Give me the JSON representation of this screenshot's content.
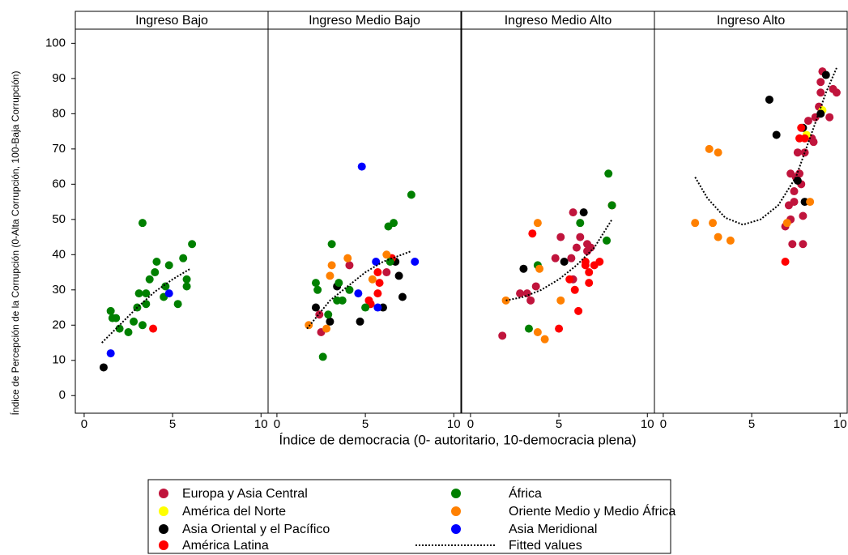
{
  "ylabel": "Índice de Percepción de la Corrupción (0-Alta Corrupción, 100-Baja Corrupción)",
  "xlabel": "Índice de democracia (0- autoritario, 10-democracia plena)",
  "chart_data": [
    {
      "type": "scatter",
      "title": "Ingreso Bajo",
      "xlim": [
        -0.5,
        10.4
      ],
      "xticks": [
        0,
        5,
        10
      ],
      "ylim": [
        -5,
        104
      ],
      "yticks": [
        0,
        10,
        20,
        30,
        40,
        50,
        60,
        70,
        80,
        90,
        100
      ],
      "series": [
        {
          "name": "Europa y Asia Central",
          "color": "#c0143c",
          "x": [],
          "values": []
        },
        {
          "name": "América del Norte",
          "color": "#ffff00",
          "x": [],
          "values": []
        },
        {
          "name": "Asia Oriental y el Pacífico",
          "color": "#000000",
          "x": [
            1.1
          ],
          "values": [
            8
          ]
        },
        {
          "name": "América Latina",
          "color": "#ff0000",
          "x": [
            3.9
          ],
          "values": [
            19
          ]
        },
        {
          "name": "África",
          "color": "#008000",
          "x": [
            3.3,
            6.1,
            4.1,
            4.8,
            5.6,
            4.0,
            5.8,
            5.8,
            3.7,
            4.6,
            4.5,
            5.3,
            3.5,
            3.1,
            3.5,
            3.0,
            2.8,
            3.3,
            2.5,
            2.0,
            1.5,
            1.6,
            1.8
          ],
          "values": [
            49,
            43,
            38,
            37,
            39,
            35,
            33,
            31,
            33,
            31,
            28,
            26,
            29,
            29,
            26,
            25,
            21,
            20,
            18,
            19,
            24,
            22,
            22
          ]
        },
        {
          "name": "Oriente Medio y Medio África",
          "color": "#ff8000",
          "x": [],
          "values": []
        },
        {
          "name": "Asia Meridional",
          "color": "#0000ff",
          "x": [
            1.5,
            4.8
          ],
          "values": [
            12,
            29
          ]
        },
        {
          "name": "Fitted values",
          "type": "line",
          "color": "#000000",
          "x": [
            1,
            2,
            3,
            4,
            5,
            6
          ],
          "values": [
            15,
            20,
            25,
            29.5,
            33,
            36
          ]
        }
      ]
    },
    {
      "type": "scatter",
      "title": "Ingreso Medio Bajo",
      "xlim": [
        -0.5,
        10.4
      ],
      "xticks": [
        0,
        5,
        10
      ],
      "ylim": [
        -5,
        104
      ],
      "series": [
        {
          "name": "Europa y Asia Central",
          "color": "#c0143c",
          "x": [
            2.4,
            2.5,
            4.1,
            6.2
          ],
          "values": [
            23,
            18,
            37,
            35
          ]
        },
        {
          "name": "América del Norte",
          "color": "#ffff00",
          "x": [],
          "values": []
        },
        {
          "name": "Asia Oriental y el Pacífico",
          "color": "#000000",
          "x": [
            2.2,
            3.0,
            3.4,
            4.7,
            6.0,
            6.7,
            6.9,
            7.1
          ],
          "values": [
            25,
            21,
            31,
            21,
            25,
            38,
            34,
            28
          ]
        },
        {
          "name": "América Latina",
          "color": "#ff0000",
          "x": [
            5.7,
            5.8,
            5.7,
            5.2,
            5.3,
            6.5
          ],
          "values": [
            35,
            32,
            29,
            27,
            26,
            39
          ]
        },
        {
          "name": "África",
          "color": "#008000",
          "x": [
            7.6,
            6.3,
            6.6,
            3.1,
            2.2,
            2.3,
            2.9,
            2.6,
            3.5,
            3.7,
            3.4,
            4.1,
            5.0,
            6.4
          ],
          "values": [
            57,
            48,
            49,
            43,
            32,
            30,
            23,
            11,
            32,
            27,
            27,
            30,
            25,
            38
          ]
        },
        {
          "name": "Oriente Medio y Medio África",
          "color": "#ff8000",
          "x": [
            1.8,
            2.8,
            3.1,
            3.0,
            4.0,
            6.2,
            5.4
          ],
          "values": [
            20,
            19,
            37,
            34,
            39,
            40,
            33
          ]
        },
        {
          "name": "Asia Meridional",
          "color": "#0000ff",
          "x": [
            4.8,
            5.6,
            7.8,
            4.6,
            5.7
          ],
          "values": [
            65,
            38,
            38,
            29,
            25
          ]
        },
        {
          "name": "Fitted values",
          "type": "line",
          "color": "#000000",
          "x": [
            1.7,
            3,
            4,
            5,
            6,
            7.6
          ],
          "values": [
            19,
            27,
            31,
            35,
            38,
            41
          ]
        }
      ]
    },
    {
      "type": "scatter",
      "title": "Ingreso Medio Alto",
      "xlim": [
        -0.5,
        10.4
      ],
      "xticks": [
        0,
        5,
        10
      ],
      "ylim": [
        -5,
        104
      ],
      "series": [
        {
          "name": "Europa y Asia Central",
          "color": "#c0143c",
          "x": [
            1.8,
            2.8,
            3.2,
            3.4,
            3.7,
            4.8,
            5.1,
            5.7,
            5.8,
            5.8,
            6.0,
            6.2,
            6.6,
            6.6,
            6.8
          ],
          "values": [
            17,
            29,
            29,
            27,
            31,
            39,
            45,
            39,
            52,
            33,
            42,
            45,
            43,
            41,
            42
          ]
        },
        {
          "name": "América del Norte",
          "color": "#ffff00",
          "x": [],
          "values": []
        },
        {
          "name": "Asia Oriental y el Pacífico",
          "color": "#000000",
          "x": [
            3.0,
            5.3,
            6.4
          ],
          "values": [
            36,
            38,
            52
          ]
        },
        {
          "name": "América Latina",
          "color": "#ff0000",
          "x": [
            3.5,
            5.0,
            5.6,
            5.9,
            6.1,
            6.5,
            6.5,
            6.7,
            6.7,
            7.0,
            7.3,
            8.0
          ],
          "values": [
            46,
            19,
            33,
            30,
            24,
            38,
            37,
            35,
            32,
            37,
            38,
            54
          ]
        },
        {
          "name": "África",
          "color": "#008000",
          "x": [
            3.3,
            3.8,
            6.2,
            7.8,
            7.7,
            8.0
          ],
          "values": [
            19,
            37,
            49,
            63,
            44,
            54
          ]
        },
        {
          "name": "Oriente Medio y Medio África",
          "color": "#ff8000",
          "x": [
            2.0,
            3.8,
            3.9,
            3.8,
            4.2,
            5.1
          ],
          "values": [
            27,
            49,
            36,
            18,
            16,
            27
          ]
        },
        {
          "name": "Asia Meridional",
          "color": "#0000ff",
          "x": [],
          "values": []
        },
        {
          "name": "Fitted values",
          "type": "line",
          "color": "#000000",
          "x": [
            2,
            3,
            4,
            5,
            6,
            7,
            8
          ],
          "values": [
            27,
            28,
            30,
            33,
            37,
            42,
            50
          ]
        }
      ]
    },
    {
      "type": "scatter",
      "title": "Ingreso Alto",
      "xlim": [
        -0.5,
        10.4
      ],
      "xticks": [
        0,
        5,
        10
      ],
      "ylim": [
        -5,
        104
      ],
      "series": [
        {
          "name": "Europa y Asia Central",
          "color": "#c0143c",
          "x": [
            9.0,
            8.9,
            8.9,
            9.6,
            9.8,
            9.4,
            8.8,
            8.6,
            8.2,
            8.4,
            8.5,
            7.6,
            8.0,
            7.2,
            7.5,
            7.8,
            7.4,
            7.4,
            7.1,
            7.9,
            7.2,
            6.9,
            7.3,
            7.9,
            7.7
          ],
          "values": [
            92,
            89,
            86,
            87,
            86,
            79,
            82,
            79,
            78,
            73,
            72,
            69,
            69,
            63,
            62,
            60,
            58,
            55,
            54,
            51,
            50,
            48,
            43,
            43,
            63
          ]
        },
        {
          "name": "América del Norte",
          "color": "#ffff00",
          "x": [
            9.0,
            8.1
          ],
          "values": [
            81,
            74
          ]
        },
        {
          "name": "Asia Oriental y el Pacífico",
          "color": "#000000",
          "x": [
            6.0,
            6.4,
            7.9,
            8.0,
            7.6,
            8.9,
            9.2
          ],
          "values": [
            84,
            74,
            76,
            55,
            61,
            80,
            91
          ]
        },
        {
          "name": "América Latina",
          "color": "#ff0000",
          "x": [
            6.9,
            7.7,
            8.0,
            7.8
          ],
          "values": [
            38,
            73,
            73,
            76
          ]
        },
        {
          "name": "África",
          "color": "#008000",
          "x": [],
          "values": []
        },
        {
          "name": "Oriente Medio y Medio África",
          "color": "#ff8000",
          "x": [
            1.8,
            2.6,
            3.1,
            2.8,
            3.1,
            3.8,
            7.0,
            8.3
          ],
          "values": [
            49,
            70,
            69,
            49,
            45,
            44,
            49,
            55
          ]
        },
        {
          "name": "Asia Meridional",
          "color": "#0000ff",
          "x": [],
          "values": []
        },
        {
          "name": "Fitted values",
          "type": "line",
          "color": "#000000",
          "x": [
            1.8,
            2.5,
            3.5,
            4.5,
            5.5,
            6.5,
            7.5,
            8.5,
            9.2,
            9.8
          ],
          "values": [
            62,
            56,
            50.5,
            48.5,
            50,
            54,
            62,
            76,
            86,
            93
          ]
        }
      ]
    }
  ]
}
